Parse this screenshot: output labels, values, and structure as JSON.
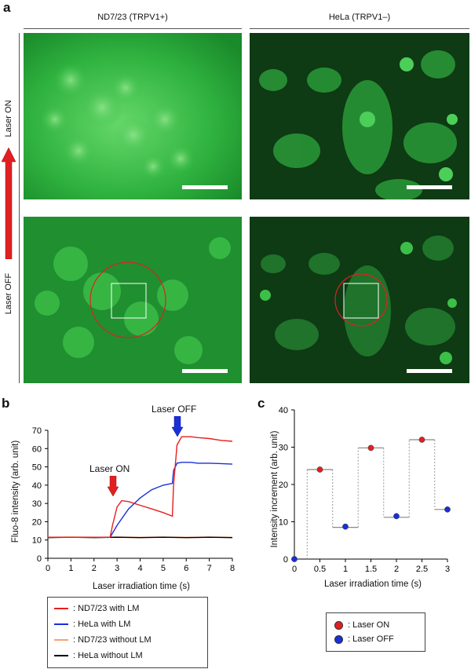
{
  "panel_a": {
    "letter": "a",
    "col1_title": "ND7/23 (TRPV1+)",
    "col2_title": "HeLa (TRPV1–)",
    "side_label_top": "Laser ON",
    "side_label_bottom": "Laser OFF",
    "image_color": "#1fa33a",
    "arrow_color": "#e02020"
  },
  "panel_b": {
    "letter": "b",
    "ylabel": "Fluo-8 intensity (arb. unit)",
    "xlabel": "Laser irradiation time (s)",
    "xticks": [
      "0",
      "1",
      "2",
      "3",
      "4",
      "5",
      "6",
      "7",
      "8"
    ],
    "yticks": [
      "0",
      "10",
      "20",
      "30",
      "40",
      "50",
      "60",
      "70"
    ],
    "annotation_on": "Laser ON",
    "annotation_off": "Laser OFF",
    "legend": [
      {
        "label": ": ND7/23 with LM",
        "color": "#e81e1e"
      },
      {
        "label": ": HeLa with LM",
        "color": "#1a2fd8"
      },
      {
        "label": ": ND7/23 without LM",
        "color": "#f4a37a"
      },
      {
        "label": ": HeLa without LM",
        "color": "#000000"
      }
    ]
  },
  "panel_c": {
    "letter": "c",
    "ylabel": "Intensity increment (arb. unit)",
    "xlabel": "Laser irradiation time (s)",
    "xticks": [
      "0",
      "0.5",
      "1",
      "1.5",
      "2",
      "2.5",
      "3"
    ],
    "yticks": [
      "0",
      "10",
      "20",
      "30",
      "40"
    ],
    "legend": [
      {
        "label": ": Laser ON",
        "color": "#e02020"
      },
      {
        "label": ": Laser OFF",
        "color": "#1a2fd8"
      }
    ]
  },
  "chart_data": [
    {
      "type": "line",
      "xlabel": "Laser irradiation time (s)",
      "ylabel": "Fluo-8 intensity (arb. unit)",
      "xlim": [
        0,
        8
      ],
      "ylim": [
        0,
        70
      ],
      "series": [
        {
          "name": "ND7/23 with LM",
          "color": "#e81e1e",
          "x": [
            0,
            1,
            2,
            2.7,
            2.8,
            3.0,
            3.2,
            3.5,
            4.0,
            4.5,
            5.0,
            5.4,
            5.45,
            5.6,
            5.8,
            6.2,
            6.5,
            7.0,
            7.5,
            8.0
          ],
          "y": [
            11.5,
            11.5,
            11.5,
            11.5,
            18,
            28,
            31.5,
            31,
            29,
            27,
            25,
            23,
            40,
            62,
            66.5,
            66.5,
            66,
            65.5,
            64.5,
            64
          ]
        },
        {
          "name": "HeLa with LM",
          "color": "#1a2fd8",
          "x": [
            0,
            1,
            2,
            2.7,
            3.0,
            3.5,
            4.0,
            4.5,
            5.0,
            5.4,
            5.45,
            5.6,
            5.8,
            6.2,
            6.5,
            7.0,
            7.5,
            8.0
          ],
          "y": [
            11.5,
            11.5,
            11.5,
            11.5,
            18,
            27,
            33,
            37.5,
            40,
            41,
            48,
            52,
            52.5,
            52.5,
            52,
            52,
            51.8,
            51.5
          ]
        },
        {
          "name": "ND7/23 without LM",
          "color": "#f4a37a",
          "x": [
            0,
            1,
            2,
            3,
            4,
            5,
            6,
            7,
            8
          ],
          "y": [
            11.5,
            11.6,
            11.5,
            11.6,
            11.5,
            11.6,
            11.5,
            11.6,
            11.5
          ]
        },
        {
          "name": "HeLa without LM",
          "color": "#000000",
          "x": [
            0,
            1,
            2,
            3,
            4,
            5,
            6,
            7,
            8
          ],
          "y": [
            11.3,
            11.5,
            11.3,
            11.5,
            11.3,
            11.5,
            11.3,
            11.5,
            11.3
          ]
        }
      ]
    },
    {
      "type": "scatter",
      "xlabel": "Laser irradiation time (s)",
      "ylabel": "Intensity increment (arb. unit)",
      "xlim": [
        0,
        3
      ],
      "ylim": [
        0,
        40
      ],
      "series": [
        {
          "name": "Laser ON",
          "color": "#e02020",
          "x": [
            0.5,
            1.5,
            2.5
          ],
          "y": [
            24,
            29.8,
            32
          ]
        },
        {
          "name": "Laser OFF",
          "color": "#1a2fd8",
          "x": [
            0,
            1,
            2,
            3
          ],
          "y": [
            0,
            8.7,
            11.5,
            13.3
          ]
        }
      ],
      "step_line": {
        "x": [
          0.25,
          0.75,
          1.25,
          1.75,
          2.25,
          2.75,
          3
        ],
        "y": [
          24,
          8.5,
          29.8,
          11.2,
          32,
          13.3,
          13.3
        ]
      }
    }
  ]
}
